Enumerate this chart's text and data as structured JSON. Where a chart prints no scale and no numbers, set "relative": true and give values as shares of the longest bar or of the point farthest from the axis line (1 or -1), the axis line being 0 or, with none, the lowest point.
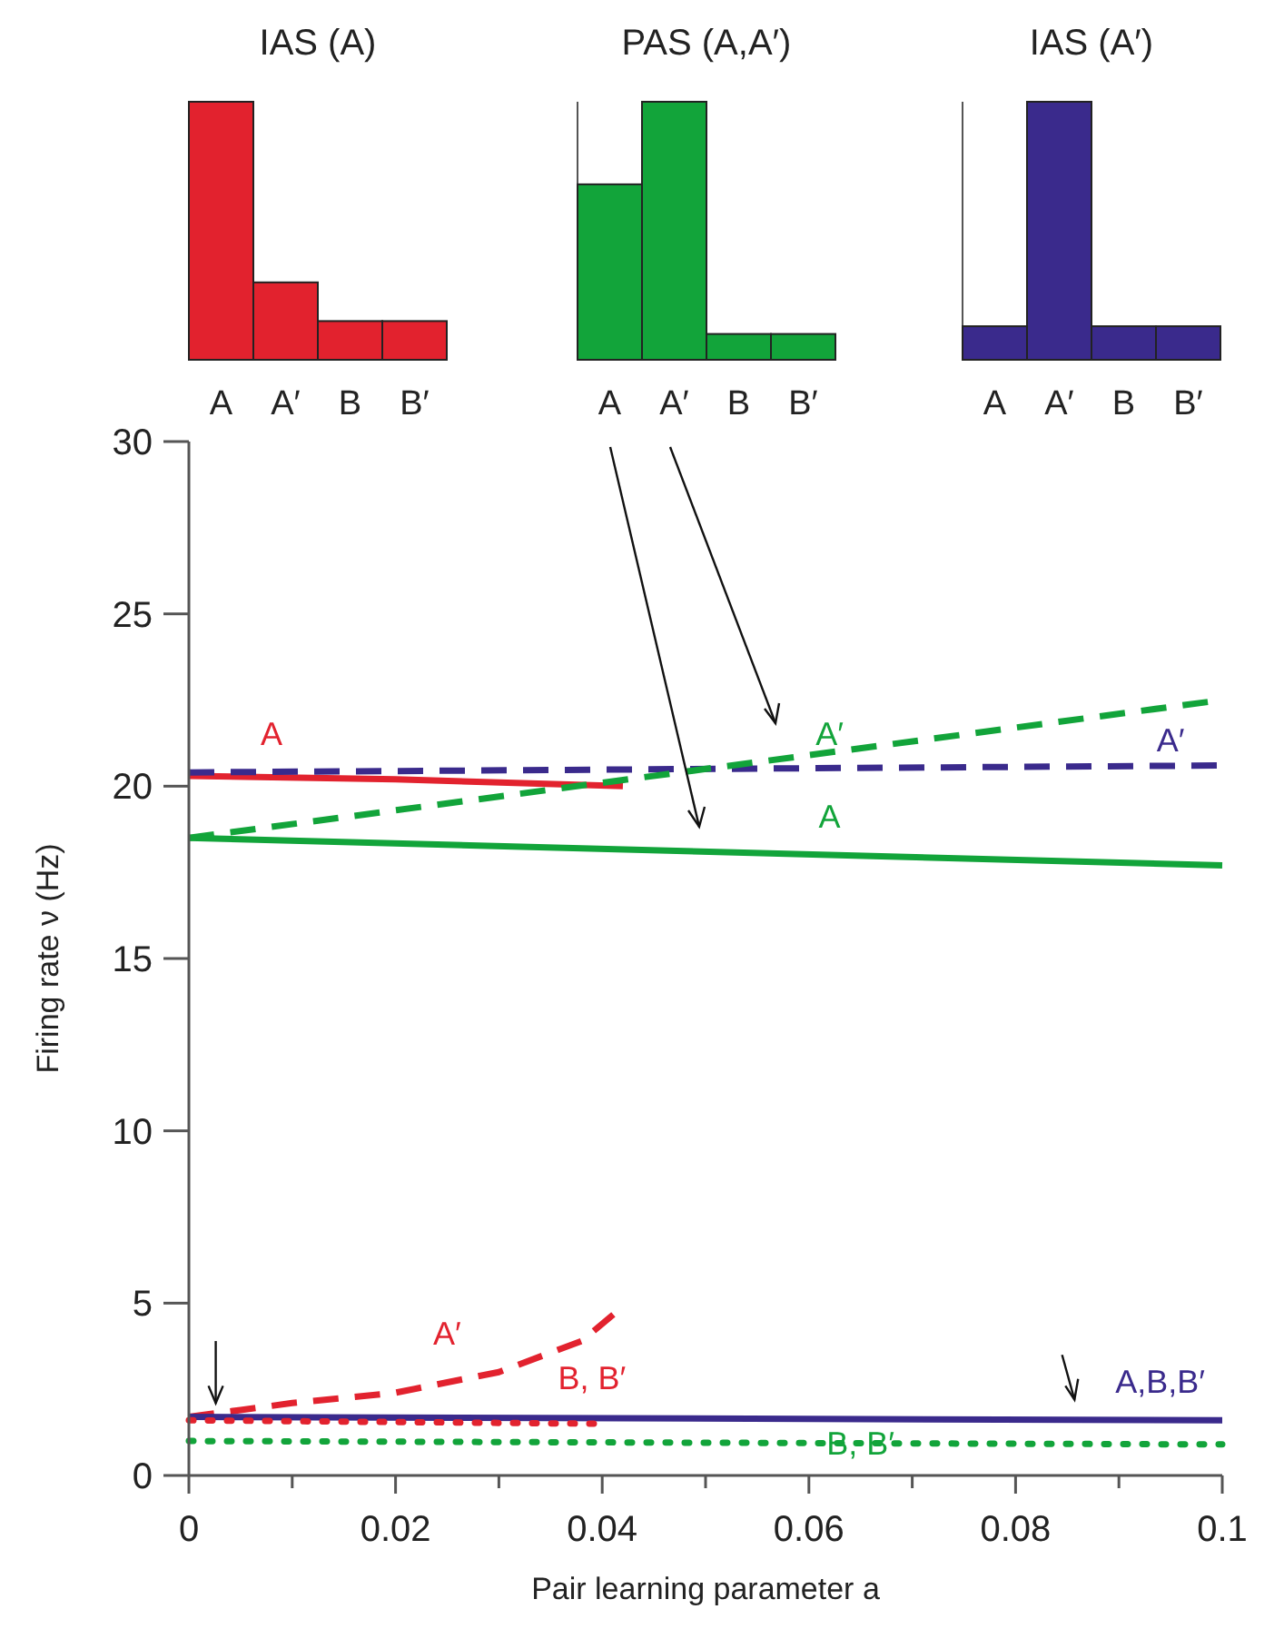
{
  "chart_data": [
    {
      "type": "bar",
      "title": "IAS (A)",
      "categories": [
        "A",
        "A′",
        "B",
        "B′"
      ],
      "values": [
        1,
        0.3,
        0.15,
        0.15
      ],
      "color": "#e2222e",
      "relative": true
    },
    {
      "type": "bar",
      "title": "PAS (A,A′)",
      "categories": [
        "A",
        "A′",
        "B",
        "B′"
      ],
      "values": [
        0.68,
        1,
        0.1,
        0.1
      ],
      "color": "#12a43a",
      "relative": true
    },
    {
      "type": "bar",
      "title": "IAS (A′)",
      "categories": [
        "A",
        "A′",
        "B",
        "B′"
      ],
      "values": [
        0.13,
        1,
        0.13,
        0.13
      ],
      "color": "#3a2a8c",
      "relative": true
    },
    {
      "type": "line",
      "xlabel": "Pair learning parameter a",
      "ylabel": "Firing rate ν (Hz)",
      "xlim": [
        0,
        0.1
      ],
      "ylim": [
        0,
        30
      ],
      "xticks": [
        0,
        {
          "value": 0.01,
          "label": null
        },
        0.02,
        {
          "value": 0.03,
          "label": null
        },
        0.04,
        {
          "value": 0.05,
          "label": null
        },
        0.06,
        {
          "value": 0.07,
          "label": null
        },
        0.08,
        {
          "value": 0.09,
          "label": null
        },
        {
          "value": 0.1,
          "label": "0.1"
        }
      ],
      "yticks": [
        0,
        5,
        10,
        15,
        20,
        25,
        30
      ],
      "series": [
        {
          "name": "A",
          "color": "#e2222e",
          "x": [
            0,
            0.02,
            0.042
          ],
          "values": [
            20.3,
            20.2,
            20.0
          ],
          "line_style": "solid"
        },
        {
          "name": "A′",
          "color": "#e2222e",
          "x": [
            0,
            0.005,
            0.01,
            0.02,
            0.03,
            0.038,
            0.042
          ],
          "values": [
            1.7,
            1.9,
            2.1,
            2.4,
            3.0,
            3.9,
            4.9
          ],
          "line_style": "dashed"
        },
        {
          "name": "A′",
          "color": "#3a2a8c",
          "x": [
            0,
            0.1
          ],
          "values": [
            20.4,
            20.6
          ],
          "line_style": "dashed"
        },
        {
          "name": "A,B,B′",
          "color": "#3a2a8c",
          "x": [
            0,
            0.1
          ],
          "values": [
            1.7,
            1.6
          ],
          "line_style": "solid"
        },
        {
          "name": "B, B′",
          "color": "#e2222e",
          "x": [
            0,
            0.04
          ],
          "values": [
            1.6,
            1.5
          ],
          "line_style": "dotted"
        },
        {
          "name": "A′",
          "color": "#12a43a",
          "x": [
            0,
            0.1
          ],
          "values": [
            18.5,
            22.5
          ],
          "line_style": "dashed"
        },
        {
          "name": "A",
          "color": "#12a43a",
          "x": [
            0,
            0.1
          ],
          "values": [
            18.5,
            17.7
          ],
          "line_style": "solid"
        },
        {
          "name": "B, B′",
          "color": "#12a43a",
          "x": [
            0,
            0.1
          ],
          "values": [
            1.0,
            0.9
          ],
          "line_style": "dotted"
        }
      ]
    }
  ]
}
